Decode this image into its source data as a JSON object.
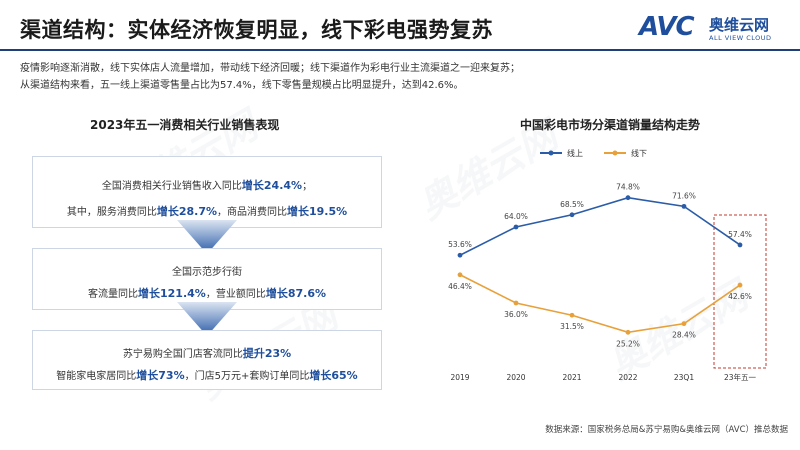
{
  "page": {
    "title": "渠道结构：实体经济恢复明显，线下彩电强势复苏",
    "intro_line1": "疫情影响逐渐消散，线下实体店人流量增加，带动线下经济回暖；线下渠道作为彩电行业主流渠道之一迎来复苏；",
    "intro_line2": "从渠道结构来看，五一线上渠道零售量占比为57.4%，线下零售量规模占比明显提升，达到42.6%。",
    "left_title": "2023年五一消费相关行业销售表现",
    "right_title": "中国彩电市场分渠道销量结构走势",
    "source": "数据来源：国家税务总局&苏宁易购&奥维云网（AVC）推总数据"
  },
  "logo": {
    "avc": "AVC",
    "cn": "奥维云网",
    "en": "ALL VIEW CLOUD",
    "watermark": "奥维云网"
  },
  "panels": {
    "p1": {
      "l1_prefix": "全国消费相关行业销售收入同比",
      "l1_value": "增长24.4%",
      "l1_suffix": "；",
      "l2_prefix": "其中，服务消费同比",
      "l2_value": "增长28.7%",
      "l2_mid": "，商品消费同比",
      "l2_value2": "增长19.5%"
    },
    "p2": {
      "l1": "全国示范步行街",
      "l2_prefix": "客流量同比",
      "l2_value": "增长121.4%",
      "l2_mid": "，营业额同比",
      "l2_value2": "增长87.6%"
    },
    "p3": {
      "l1_prefix": "苏宁易购全国门店客流同比",
      "l1_value": "提升23%",
      "l2_prefix": "智能家电家居同比",
      "l2_value": "增长73%",
      "l2_mid": "，门店5万元+套购订单同比",
      "l2_value2": "增长65%"
    }
  },
  "colors": {
    "online": "#2b5ca8",
    "offline": "#e8a13a",
    "highlight_box": "#c0392b",
    "accent": "#1f4f9c"
  },
  "chart_data": {
    "type": "line",
    "title": "中国彩电市场分渠道销量结构走势",
    "categories": [
      "2019",
      "2020",
      "2021",
      "2022",
      "23Q1",
      "23年五一"
    ],
    "series": [
      {
        "name": "线上",
        "values": [
          53.6,
          64.0,
          68.5,
          74.8,
          71.6,
          57.4
        ],
        "labels": [
          "53.6%",
          "64.0%",
          "68.5%",
          "74.8%",
          "71.6%",
          "57.4%"
        ]
      },
      {
        "name": "线下",
        "values": [
          46.4,
          36.0,
          31.5,
          25.2,
          28.4,
          42.6
        ],
        "labels": [
          "46.4%",
          "36.0%",
          "31.5%",
          "25.2%",
          "28.4%",
          "42.6%"
        ]
      }
    ],
    "ylim": [
      15,
      85
    ],
    "legend": "top-center",
    "grid": false,
    "highlight_category": "23年五一"
  }
}
